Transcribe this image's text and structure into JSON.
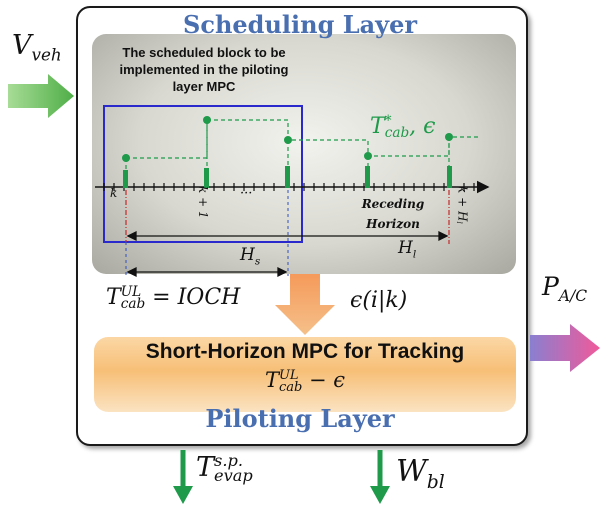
{
  "layers": {
    "scheduling_title": "Scheduling Layer",
    "piloting_title": "Piloting Layer"
  },
  "block_caption": "The scheduled block to be implemented in the piloting layer MPC",
  "mpc": {
    "title": "Short-Horizon MPC for Tracking",
    "reference_base": "T",
    "reference_sub": "cab",
    "reference_sup": "UL",
    "reference_tail": " − ϵ"
  },
  "signals": {
    "v_base": "V",
    "v_sub": "veh",
    "p_base": "P",
    "p_sub": "A/C",
    "tevap_base": "T",
    "tevap_sub": "evap",
    "tevap_sup": "s.p.",
    "w_base": "W",
    "w_sub": "bl",
    "tul_base": "T",
    "tul_sub": "cab",
    "tul_sup": "UL",
    "tul_rhs": " = IOCH",
    "eps_label": "ϵ(i|k)",
    "tcab_base": "T",
    "tcab_sub": "cab",
    "tcab_sup": "*",
    "tcab_tail": ", ϵ"
  },
  "timeline": {
    "tick_k": "k",
    "tick_k1": "k + 1",
    "tick_dots": "···",
    "tick_kh_main": "k + H",
    "tick_kh_sub": "l",
    "receding_line1": "Receding",
    "receding_line2": "Horizon",
    "hs_base": "H",
    "hs_sub": "s",
    "hl_base": "H",
    "hl_sub": "l"
  },
  "colors": {
    "accent_blue": "#4a6fb0",
    "green": "#1e9a4a",
    "arrow_green": "#5cb85c",
    "arrow_orange": "#f5a05a",
    "arrow_pink": "#e85a9a",
    "block_outline": "#2a2acc"
  }
}
